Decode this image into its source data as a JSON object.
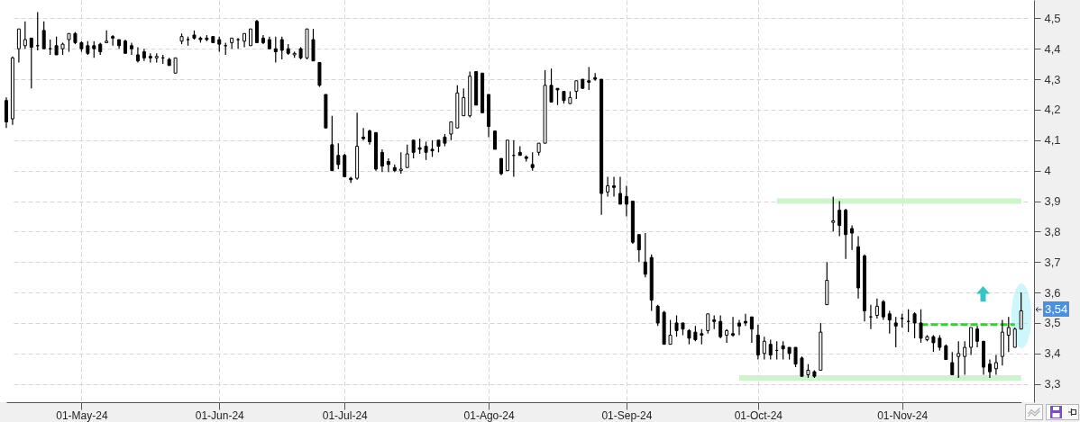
{
  "chart_data": {
    "type": "candlestick",
    "categories": [
      null,
      null,
      null,
      null,
      null,
      null,
      null,
      null,
      null,
      null,
      null,
      null,
      "01-May-24",
      null,
      null,
      null,
      null,
      null,
      null,
      null,
      null,
      null,
      null,
      null,
      null,
      null,
      null,
      null,
      null,
      null,
      null,
      null,
      null,
      null,
      "01-Jun-24",
      null,
      null,
      null,
      null,
      null,
      null,
      null,
      null,
      null,
      null,
      null,
      null,
      null,
      null,
      null,
      null,
      null,
      null,
      null,
      "01-Jul-24",
      null,
      null,
      null,
      null,
      null,
      null,
      null,
      null,
      null,
      null,
      null,
      null,
      null,
      null,
      null,
      null,
      null,
      null,
      null,
      null,
      null,
      null,
      "01-Ago-24",
      null,
      null,
      null,
      null,
      null,
      null,
      null,
      null,
      null,
      null,
      null,
      null,
      null,
      null,
      null,
      null,
      null,
      null,
      null,
      null,
      null,
      "01-Sep-24",
      null,
      null,
      null,
      null,
      null,
      null,
      null,
      null,
      null,
      null,
      null,
      null,
      null,
      null,
      null,
      null,
      null,
      null,
      null,
      null,
      "01-Oct-24",
      null,
      null,
      null,
      null,
      null,
      null,
      null,
      null,
      null,
      null,
      null,
      null,
      null,
      null,
      null,
      null,
      null,
      null,
      null,
      null,
      null,
      null,
      "01-Nov-24",
      null,
      null,
      null,
      null,
      null,
      null,
      null,
      null,
      null,
      null,
      null,
      null,
      null,
      null,
      null,
      null,
      null,
      null,
      null
    ],
    "ohlc": [
      [
        4.23,
        4.24,
        4.14,
        4.16
      ],
      [
        4.17,
        4.375,
        4.15,
        4.37
      ],
      [
        4.4,
        4.465,
        4.355,
        4.465
      ],
      [
        4.41,
        4.49,
        4.4,
        4.43
      ],
      [
        4.435,
        4.435,
        4.27,
        4.405
      ],
      [
        4.41,
        4.52,
        4.395,
        4.41
      ],
      [
        4.46,
        4.49,
        4.4,
        4.4
      ],
      [
        4.4,
        4.43,
        4.38,
        4.4
      ],
      [
        4.41,
        4.44,
        4.38,
        4.38
      ],
      [
        4.4,
        4.42,
        4.38,
        4.415
      ],
      [
        4.43,
        4.45,
        4.39,
        4.45
      ],
      [
        4.45,
        4.455,
        4.415,
        4.42
      ],
      [
        4.42,
        4.425,
        4.39,
        4.4
      ],
      [
        4.41,
        4.425,
        4.38,
        4.385
      ],
      [
        4.41,
        4.425,
        4.37,
        4.4
      ],
      [
        4.415,
        4.42,
        4.38,
        4.39
      ],
      [
        4.42,
        4.46,
        4.42,
        4.425
      ],
      [
        4.44,
        4.445,
        4.41,
        4.435
      ],
      [
        4.43,
        4.43,
        4.4,
        4.41
      ],
      [
        4.425,
        4.43,
        4.385,
        4.385
      ],
      [
        4.41,
        4.42,
        4.38,
        4.4
      ],
      [
        4.38,
        4.405,
        4.355,
        4.36
      ],
      [
        4.39,
        4.4,
        4.36,
        4.37
      ],
      [
        4.375,
        4.385,
        4.355,
        4.37
      ],
      [
        4.37,
        4.385,
        4.355,
        4.375
      ],
      [
        4.37,
        4.38,
        4.35,
        4.37
      ],
      [
        4.365,
        4.37,
        4.345,
        4.345
      ],
      [
        4.32,
        4.37,
        4.32,
        4.37
      ],
      [
        4.425,
        4.45,
        4.415,
        4.44
      ],
      [
        4.43,
        4.44,
        4.41,
        4.43
      ],
      [
        4.445,
        4.46,
        4.43,
        4.435
      ],
      [
        4.435,
        4.44,
        4.42,
        4.43
      ],
      [
        4.435,
        4.445,
        4.425,
        4.43
      ],
      [
        4.44,
        4.44,
        4.42,
        4.42
      ],
      [
        4.43,
        4.44,
        4.39,
        4.415
      ],
      [
        4.41,
        4.42,
        4.38,
        4.41
      ],
      [
        4.42,
        4.435,
        4.4,
        4.435
      ],
      [
        4.43,
        4.435,
        4.4,
        4.43
      ],
      [
        4.425,
        4.45,
        4.405,
        4.45
      ],
      [
        4.41,
        4.465,
        4.41,
        4.465
      ],
      [
        4.49,
        4.495,
        4.42,
        4.42
      ],
      [
        4.435,
        4.445,
        4.415,
        4.42
      ],
      [
        4.43,
        4.44,
        4.4,
        4.4
      ],
      [
        4.4,
        4.44,
        4.355,
        4.39
      ],
      [
        4.43,
        4.44,
        4.365,
        4.395
      ],
      [
        4.4,
        4.415,
        4.38,
        4.385
      ],
      [
        4.38,
        4.39,
        4.37,
        4.385
      ],
      [
        4.4,
        4.405,
        4.365,
        4.37
      ],
      [
        4.37,
        4.465,
        4.365,
        4.465
      ],
      [
        4.43,
        4.465,
        4.36,
        4.36
      ],
      [
        4.355,
        4.355,
        4.275,
        4.28
      ],
      [
        4.25,
        4.25,
        4.14,
        4.14
      ],
      [
        4.085,
        4.18,
        4.0,
        4.0
      ],
      [
        4.05,
        4.09,
        4.005,
        4.02
      ],
      [
        4.05,
        4.055,
        3.98,
        3.98
      ],
      [
        3.975,
        3.98,
        3.96,
        3.97
      ],
      [
        3.975,
        4.19,
        3.97,
        4.08
      ],
      [
        4.11,
        4.14,
        4.1,
        4.105
      ],
      [
        4.13,
        4.135,
        4.085,
        4.095
      ],
      [
        4.125,
        4.125,
        4.0,
        4.005
      ],
      [
        4.06,
        4.07,
        3.995,
        4.015
      ],
      [
        4.03,
        4.04,
        3.995,
        4.02
      ],
      [
        4.01,
        4.02,
        3.995,
        4.0
      ],
      [
        4.0,
        4.06,
        3.99,
        4.005
      ],
      [
        4.01,
        4.085,
        4.01,
        4.055
      ],
      [
        4.1,
        4.1,
        4.04,
        4.06
      ],
      [
        4.075,
        4.105,
        4.055,
        4.07
      ],
      [
        4.08,
        4.095,
        4.035,
        4.06
      ],
      [
        4.07,
        4.1,
        4.045,
        4.065
      ],
      [
        4.1,
        4.1,
        4.06,
        4.08
      ],
      [
        4.11,
        4.12,
        4.08,
        4.09
      ],
      [
        4.12,
        4.16,
        4.1,
        4.16
      ],
      [
        4.14,
        4.28,
        4.14,
        4.255
      ],
      [
        4.18,
        4.27,
        4.18,
        4.24
      ],
      [
        4.18,
        4.325,
        4.175,
        4.31
      ],
      [
        4.325,
        4.325,
        4.215,
        4.215
      ],
      [
        4.32,
        4.32,
        4.19,
        4.19
      ],
      [
        4.25,
        4.25,
        4.11,
        4.145
      ],
      [
        4.13,
        4.13,
        4.07,
        4.07
      ],
      [
        4.04,
        4.04,
        3.985,
        3.99
      ],
      [
        4.0,
        4.1,
        4.0,
        4.1
      ],
      [
        4.05,
        4.1,
        3.98,
        4.05
      ],
      [
        4.06,
        4.08,
        4.05,
        4.05
      ],
      [
        4.045,
        4.05,
        4.03,
        4.04
      ],
      [
        4.02,
        4.06,
        4.0,
        4.01
      ],
      [
        4.06,
        4.09,
        4.05,
        4.09
      ],
      [
        4.09,
        4.33,
        4.09,
        4.28
      ],
      [
        4.28,
        4.335,
        4.225,
        4.225
      ],
      [
        4.27,
        4.27,
        4.215,
        4.265
      ],
      [
        4.26,
        4.26,
        4.22,
        4.23
      ],
      [
        4.22,
        4.26,
        4.22,
        4.24
      ],
      [
        4.26,
        4.295,
        4.235,
        4.295
      ],
      [
        4.3,
        4.3,
        4.27,
        4.27
      ],
      [
        4.295,
        4.34,
        4.265,
        4.29
      ],
      [
        4.305,
        4.32,
        4.295,
        4.3
      ],
      [
        4.3,
        4.3,
        3.855,
        3.925
      ],
      [
        3.93,
        3.98,
        3.915,
        3.95
      ],
      [
        3.95,
        3.98,
        3.915,
        3.945
      ],
      [
        3.925,
        3.98,
        3.89,
        3.89
      ],
      [
        3.915,
        3.95,
        3.85,
        3.89
      ],
      [
        3.9,
        3.9,
        3.76,
        3.765
      ],
      [
        3.79,
        3.79,
        3.7,
        3.74
      ],
      [
        3.7,
        3.795,
        3.65,
        3.66
      ],
      [
        3.715,
        3.725,
        3.54,
        3.575
      ],
      [
        3.555,
        3.56,
        3.49,
        3.5
      ],
      [
        3.535,
        3.54,
        3.43,
        3.43
      ],
      [
        3.43,
        3.51,
        3.43,
        3.46
      ],
      [
        3.5,
        3.525,
        3.455,
        3.475
      ],
      [
        3.5,
        3.5,
        3.46,
        3.48
      ],
      [
        3.475,
        3.48,
        3.43,
        3.45
      ],
      [
        3.47,
        3.49,
        3.44,
        3.445
      ],
      [
        3.465,
        3.48,
        3.43,
        3.46
      ],
      [
        3.475,
        3.53,
        3.465,
        3.53
      ],
      [
        3.51,
        3.525,
        3.48,
        3.505
      ],
      [
        3.505,
        3.525,
        3.45,
        3.455
      ],
      [
        3.46,
        3.48,
        3.435,
        3.475
      ],
      [
        3.465,
        3.52,
        3.455,
        3.46
      ],
      [
        3.5,
        3.51,
        3.46,
        3.49
      ],
      [
        3.505,
        3.53,
        3.49,
        3.5
      ],
      [
        3.52,
        3.52,
        3.435,
        3.48
      ],
      [
        3.46,
        3.495,
        3.38,
        3.395
      ],
      [
        3.4,
        3.455,
        3.38,
        3.44
      ],
      [
        3.43,
        3.445,
        3.38,
        3.395
      ],
      [
        3.41,
        3.44,
        3.38,
        3.41
      ],
      [
        3.425,
        3.44,
        3.38,
        3.415
      ],
      [
        3.42,
        3.42,
        3.38,
        3.4
      ],
      [
        3.42,
        3.42,
        3.355,
        3.365
      ],
      [
        3.385,
        3.39,
        3.325,
        3.325
      ],
      [
        3.33,
        3.365,
        3.32,
        3.345
      ],
      [
        3.34,
        3.345,
        3.32,
        3.325
      ],
      [
        3.345,
        3.5,
        3.345,
        3.47
      ],
      [
        3.56,
        3.7,
        3.56,
        3.64
      ],
      [
        3.83,
        3.915,
        3.8,
        3.835
      ],
      [
        3.87,
        3.9,
        3.785,
        3.82
      ],
      [
        3.87,
        3.875,
        3.71,
        3.79
      ],
      [
        3.81,
        3.82,
        3.74,
        3.795
      ],
      [
        3.75,
        3.785,
        3.58,
        3.615
      ],
      [
        3.72,
        3.725,
        3.505,
        3.54
      ],
      [
        3.52,
        3.56,
        3.48,
        3.52
      ],
      [
        3.525,
        3.58,
        3.515,
        3.555
      ],
      [
        3.57,
        3.575,
        3.51,
        3.52
      ],
      [
        3.53,
        3.54,
        3.465,
        3.51
      ],
      [
        3.5,
        3.52,
        3.42,
        3.49
      ],
      [
        3.515,
        3.53,
        3.485,
        3.515
      ],
      [
        3.505,
        3.545,
        3.47,
        3.505
      ],
      [
        3.53,
        3.535,
        3.45,
        3.5
      ],
      [
        3.5,
        3.545,
        3.435,
        3.45
      ],
      [
        3.445,
        3.46,
        3.44,
        3.455
      ],
      [
        3.455,
        3.46,
        3.405,
        3.435
      ],
      [
        3.45,
        3.46,
        3.41,
        3.42
      ],
      [
        3.425,
        3.43,
        3.38,
        3.38
      ],
      [
        3.37,
        3.405,
        3.33,
        3.33
      ],
      [
        3.39,
        3.44,
        3.32,
        3.4
      ],
      [
        3.39,
        3.44,
        3.33,
        3.42
      ],
      [
        3.42,
        3.485,
        3.395,
        3.485
      ],
      [
        3.48,
        3.49,
        3.42,
        3.44
      ],
      [
        3.44,
        3.44,
        3.33,
        3.355
      ],
      [
        3.365,
        3.38,
        3.32,
        3.34
      ],
      [
        3.35,
        3.395,
        3.33,
        3.37
      ],
      [
        3.39,
        3.51,
        3.36,
        3.47
      ],
      [
        3.46,
        3.52,
        3.405,
        3.485
      ],
      [
        3.42,
        3.485,
        3.42,
        3.48
      ],
      [
        3.48,
        3.6,
        3.48,
        3.54
      ]
    ],
    "color": "#000000",
    "series": [
      {
        "type": "line",
        "color": "#ccf5cc",
        "values": [
          null,
          null,
          null,
          null,
          null,
          null,
          null,
          null,
          null,
          null,
          null,
          null,
          null,
          null,
          null,
          null,
          null,
          null,
          null,
          null,
          null,
          null,
          null,
          null,
          null,
          null,
          null,
          null,
          null,
          null,
          null,
          null,
          null,
          null,
          null,
          null,
          null,
          null,
          null,
          null,
          null,
          null,
          null,
          null,
          null,
          null,
          null,
          null,
          null,
          null,
          null,
          null,
          null,
          null,
          null,
          null,
          null,
          null,
          null,
          null,
          null,
          null,
          null,
          null,
          null,
          null,
          null,
          null,
          null,
          null,
          null,
          null,
          null,
          null,
          null,
          null,
          null,
          null,
          null,
          null,
          null,
          null,
          null,
          null,
          null,
          null,
          null,
          null,
          null,
          null,
          null,
          null,
          null,
          null,
          null,
          null,
          null,
          null,
          null,
          null,
          null,
          null,
          null,
          null,
          null,
          null,
          null,
          null,
          null,
          null,
          null,
          null,
          null,
          null,
          null,
          null,
          null,
          null,
          null,
          null,
          null,
          null,
          null,
          3.9,
          3.9,
          3.9,
          3.9,
          3.9,
          3.9,
          3.9,
          3.9,
          3.9,
          3.9,
          3.9,
          3.9,
          3.9,
          3.9,
          3.9,
          3.9,
          3.9,
          3.9,
          3.9,
          3.9,
          3.9,
          3.9,
          3.9,
          3.9,
          3.9,
          3.9,
          3.9,
          3.9,
          3.9,
          3.9,
          3.9,
          3.9,
          3.9,
          3.9,
          3.9,
          3.9,
          3.9,
          3.9,
          3.9,
          3.9
        ]
      },
      {
        "type": "line",
        "color": "#ccf5cc",
        "values": [
          null,
          null,
          null,
          null,
          null,
          null,
          null,
          null,
          null,
          null,
          null,
          null,
          null,
          null,
          null,
          null,
          null,
          null,
          null,
          null,
          null,
          null,
          null,
          null,
          null,
          null,
          null,
          null,
          null,
          null,
          null,
          null,
          null,
          null,
          null,
          null,
          null,
          null,
          null,
          null,
          null,
          null,
          null,
          null,
          null,
          null,
          null,
          null,
          null,
          null,
          null,
          null,
          null,
          null,
          null,
          null,
          null,
          null,
          null,
          null,
          null,
          null,
          null,
          null,
          null,
          null,
          null,
          null,
          null,
          null,
          null,
          null,
          null,
          null,
          null,
          null,
          null,
          null,
          null,
          null,
          null,
          null,
          null,
          null,
          null,
          null,
          null,
          null,
          null,
          null,
          null,
          null,
          null,
          null,
          null,
          null,
          null,
          null,
          null,
          null,
          null,
          null,
          null,
          null,
          null,
          null,
          null,
          null,
          null,
          null,
          null,
          null,
          null,
          null,
          null,
          null,
          null,
          3.32,
          3.32,
          3.32,
          3.32,
          3.32,
          3.32,
          3.32,
          3.32,
          3.32,
          3.32,
          3.32,
          3.32,
          3.32,
          3.32,
          3.32,
          3.32,
          3.32,
          3.32,
          3.32,
          3.32,
          3.32,
          3.32,
          3.32,
          3.32,
          3.32,
          3.32,
          3.32,
          3.32,
          3.32,
          3.32,
          3.32,
          3.32,
          3.32,
          3.32,
          3.32,
          3.32,
          3.32,
          3.32,
          3.32,
          3.32,
          3.32,
          3.32,
          3.32,
          3.32,
          3.32,
          3.32
        ]
      },
      {
        "type": "line",
        "color": "#22dd22",
        "line_style": "dashed",
        "values": [
          null,
          null,
          null,
          null,
          null,
          null,
          null,
          null,
          null,
          null,
          null,
          null,
          null,
          null,
          null,
          null,
          null,
          null,
          null,
          null,
          null,
          null,
          null,
          null,
          null,
          null,
          null,
          null,
          null,
          null,
          null,
          null,
          null,
          null,
          null,
          null,
          null,
          null,
          null,
          null,
          null,
          null,
          null,
          null,
          null,
          null,
          null,
          null,
          null,
          null,
          null,
          null,
          null,
          null,
          null,
          null,
          null,
          null,
          null,
          null,
          null,
          null,
          null,
          null,
          null,
          null,
          null,
          null,
          null,
          null,
          null,
          null,
          null,
          null,
          null,
          null,
          null,
          null,
          null,
          null,
          null,
          null,
          null,
          null,
          null,
          null,
          null,
          null,
          null,
          null,
          null,
          null,
          null,
          null,
          null,
          null,
          null,
          null,
          null,
          null,
          null,
          null,
          null,
          null,
          null,
          null,
          null,
          null,
          null,
          null,
          null,
          null,
          null,
          null,
          null,
          null,
          null,
          null,
          null,
          null,
          null,
          null,
          null,
          null,
          null,
          null,
          null,
          null,
          null,
          null,
          null,
          null,
          null,
          null,
          null,
          null,
          null,
          null,
          null,
          null,
          null,
          null,
          null,
          null,
          null,
          null,
          3.495,
          3.495,
          3.495,
          3.495,
          3.495,
          3.495,
          3.495,
          3.495,
          3.495,
          3.495,
          3.495,
          3.495,
          3.495,
          3.495,
          3.495,
          3.495,
          null
        ]
      }
    ],
    "ylim": [
      3.24,
      4.56
    ],
    "yticks": [
      {
        "value": 3.3,
        "label": "3,3"
      },
      {
        "value": 3.4,
        "label": "3,4"
      },
      {
        "value": 3.5,
        "label": "3,5"
      },
      {
        "value": 3.6,
        "label": "3,6"
      },
      {
        "value": 3.7,
        "label": "3,7"
      },
      {
        "value": 3.8,
        "label": "3,8"
      },
      {
        "value": 3.9,
        "label": "3,9"
      },
      4,
      {
        "value": 4.1,
        "label": "4,1"
      },
      {
        "value": 4.2,
        "label": "4,2"
      },
      {
        "value": 4.3,
        "label": "4,3"
      },
      {
        "value": 4.4,
        "label": "4,4"
      },
      {
        "value": 4.5,
        "label": "4,5"
      }
    ],
    "grid": true,
    "annotations": [
      "3,54"
    ]
  }
}
